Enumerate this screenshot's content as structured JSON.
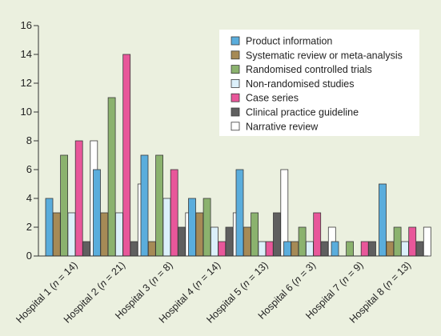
{
  "chart_data": {
    "type": "bar",
    "categories": [
      "Hospital 1 (n = 14)",
      "Hospital 2 (n = 21)",
      "Hospital 3 (n = 8)",
      "Hospital 4 (n = 14)",
      "Hospital 5 (n = 13)",
      "Hospital 6 (n = 3)",
      "Hospital 7 (n = 9)",
      "Hospital 8 (n = 13)"
    ],
    "category_labels": [
      {
        "prefix": "Hospital 1 (",
        "n": "n",
        "suffix": " = 14)"
      },
      {
        "prefix": "Hospital 2 (",
        "n": "n",
        "suffix": " = 21)"
      },
      {
        "prefix": "Hospital 3 (",
        "n": "n",
        "suffix": " = 8)"
      },
      {
        "prefix": "Hospital 4 (",
        "n": "n",
        "suffix": " = 14)"
      },
      {
        "prefix": "Hospital 5 (",
        "n": "n",
        "suffix": " = 13)"
      },
      {
        "prefix": "Hospital 6 (",
        "n": "n",
        "suffix": " = 3)"
      },
      {
        "prefix": "Hospital 7 (",
        "n": "n",
        "suffix": " = 9)"
      },
      {
        "prefix": "Hospital 8 (",
        "n": "n",
        "suffix": " = 13)"
      }
    ],
    "series": [
      {
        "name": "Product information",
        "color": "#5aaddc",
        "values": [
          4,
          6,
          7,
          4,
          6,
          1,
          1,
          5
        ]
      },
      {
        "name": "Systematic review or meta-analysis",
        "color": "#a68a56",
        "values": [
          3,
          3,
          1,
          3,
          2,
          1,
          0,
          1
        ]
      },
      {
        "name": "Randomised controlled trials",
        "color": "#8bb26e",
        "values": [
          7,
          11,
          7,
          4,
          3,
          2,
          1,
          2
        ]
      },
      {
        "name": "Non-randomised studies",
        "color": "#dcf0fa",
        "values": [
          3,
          3,
          4,
          2,
          1,
          1,
          0,
          1
        ]
      },
      {
        "name": "Case series",
        "color": "#e8579a",
        "values": [
          8,
          14,
          6,
          1,
          1,
          3,
          1,
          2
        ]
      },
      {
        "name": "Clinical practice guideline",
        "color": "#5f5f5f",
        "values": [
          1,
          1,
          2,
          2,
          3,
          1,
          1,
          1
        ]
      },
      {
        "name": "Narrative review",
        "color": "#ffffff",
        "values": [
          8,
          5,
          3,
          3,
          6,
          2,
          0,
          2
        ]
      }
    ],
    "yticks": [
      0,
      2,
      4,
      6,
      8,
      10,
      12,
      14,
      16
    ],
    "ylim": [
      0,
      16
    ],
    "grid": false,
    "legend_position": "top-right",
    "title": "",
    "xlabel": "",
    "ylabel": ""
  }
}
